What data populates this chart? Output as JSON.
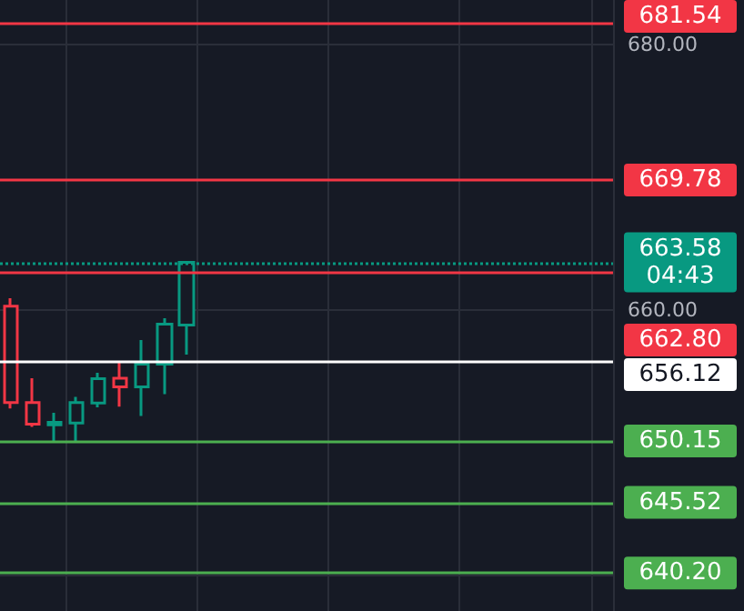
{
  "chart_data": {
    "type": "candlestick",
    "categories": [
      null,
      null,
      null,
      null,
      null,
      null,
      null,
      null,
      null,
      null,
      null,
      null,
      null,
      null,
      null,
      null,
      null,
      null,
      null,
      null,
      null,
      null,
      null,
      null,
      null,
      null,
      null,
      null
    ],
    "ohlc": [
      [
        660.29,
        660.88,
        652.58,
        653.04
      ],
      [
        653.04,
        654.87,
        651.21,
        651.4
      ],
      [
        651.35,
        652.27,
        650.03,
        651.54
      ],
      [
        651.49,
        653.46,
        650.03,
        653.04
      ],
      [
        652.99,
        655.27,
        652.68,
        654.82
      ],
      [
        654.87,
        656.1,
        652.72,
        654.22
      ],
      [
        654.22,
        657.74,
        652.03,
        655.92
      ],
      [
        655.92,
        659.38,
        653.67,
        658.93
      ],
      [
        658.87,
        663.58,
        656.64,
        663.58
      ],
      null,
      null,
      null,
      null,
      null,
      null,
      null,
      null,
      null,
      null,
      null,
      null,
      null,
      null,
      null,
      null,
      null,
      null,
      null
    ],
    "colors": [
      "#f23645",
      "#f23645",
      "#089981",
      "#089981",
      "#089981",
      "#f23645",
      "#089981",
      "#089981",
      "#089981",
      null,
      null,
      null,
      null,
      null,
      null,
      null,
      null,
      null,
      null,
      null,
      null,
      null,
      null,
      null,
      null,
      null,
      null,
      null
    ],
    "ylim": [
      637.35,
      683.32
    ],
    "yticks": [
      {
        "value": 640,
        "label": null
      },
      {
        "value": 660,
        "label": "660.00"
      },
      {
        "value": 680,
        "label": "680.00"
      }
    ],
    "tick_labels": "y",
    "grid": true,
    "ref_lines": [
      {
        "axis": "y",
        "value": 681.54,
        "label": "681.54",
        "color": "#f23645",
        "line_style": "solid"
      },
      {
        "axis": "y",
        "value": 669.78,
        "label": "669.78",
        "color": "#f23645",
        "line_style": "solid"
      },
      {
        "axis": "y",
        "value": 663.58,
        "label": "663.58\n04:43",
        "color": "#089981",
        "line_style": "dotted"
      },
      {
        "axis": "y",
        "value": 662.8,
        "label": "662.80",
        "color": "#f23645",
        "line_style": "solid"
      },
      {
        "axis": "y",
        "value": 656.12,
        "label": "656.12",
        "color": "#ffffff",
        "line_style": "solid"
      },
      {
        "axis": "y",
        "value": 650.15,
        "label": "650.15",
        "color": "#4caf50",
        "line_style": "solid"
      },
      {
        "axis": "y",
        "value": 645.52,
        "label": "645.52",
        "color": "#4caf50",
        "line_style": "solid"
      },
      {
        "axis": "y",
        "value": 640.2,
        "label": "640.20",
        "color": "#4caf50",
        "line_style": "solid"
      }
    ]
  }
}
